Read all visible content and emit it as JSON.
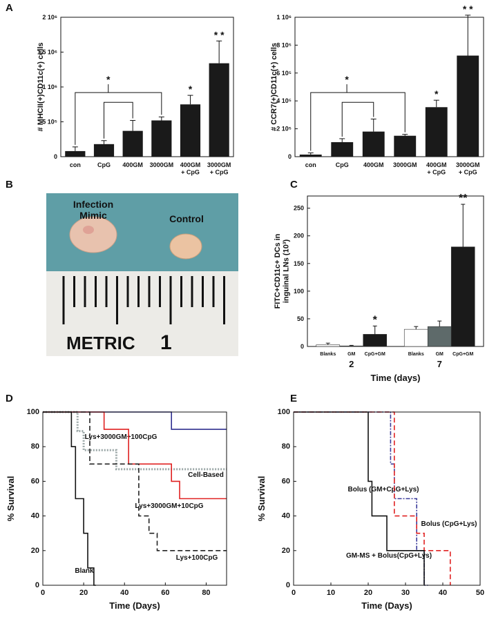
{
  "panels": [
    "A",
    "B",
    "C",
    "D",
    "E"
  ],
  "photo": {
    "labels": [
      "Infection\nMimic",
      "Control",
      "METRIC",
      "1"
    ]
  },
  "chart_data": [
    {
      "type": "bar",
      "ylabel": "# MHCII(+)CD11c(+) cells",
      "categories": [
        "con",
        "CpG",
        "400GM",
        "3000GM",
        "400GM\n+ CpG",
        "3000GM\n+ CpG"
      ],
      "values": [
        80000,
        180000,
        370000,
        520000,
        750000,
        1340000
      ],
      "errors": [
        60000,
        50000,
        150000,
        50000,
        130000,
        320000
      ],
      "color": "#1a1a1a",
      "ylim": [
        0,
        2000000
      ],
      "yticks": [
        0,
        {
          "value": 500000,
          "label": "5 10⁵"
        },
        {
          "value": 1000000,
          "label": "1 10⁶"
        },
        {
          "value": 1500000,
          "label": "1.5 10⁶"
        },
        {
          "value": 2000000,
          "label": "2 10⁶"
        }
      ],
      "annotations": [
        {
          "text": "*",
          "category": "400GM\n+ CpG"
        },
        {
          "text": "* *",
          "category": "3000GM\n+ CpG"
        }
      ],
      "bracket_label": "*"
    },
    {
      "type": "bar",
      "ylabel": "# CCR7(+)CD11c(+) cells",
      "categories": [
        "con",
        "CpG",
        "400GM",
        "3000GM",
        "400GM\n+ CpG",
        "3000GM\n+ CpG"
      ],
      "values": [
        15000,
        104000,
        180000,
        150000,
        355000,
        725000
      ],
      "errors": [
        12000,
        25000,
        90000,
        10000,
        50000,
        290000
      ],
      "color": "#1a1a1a",
      "ylim": [
        0,
        1000000
      ],
      "yticks": [
        0,
        {
          "value": 200000,
          "label": "2 10⁵"
        },
        {
          "value": 400000,
          "label": "4 10⁵"
        },
        {
          "value": 600000,
          "label": "6 10⁵"
        },
        {
          "value": 800000,
          "label": "8 10⁵"
        },
        {
          "value": 1000000,
          "label": "1 10⁶"
        }
      ],
      "annotations": [
        {
          "text": "*",
          "category": "400GM\n+ CpG"
        },
        {
          "text": "* *",
          "category": "3000GM\n+ CpG"
        }
      ],
      "bracket_label": "*"
    },
    {
      "type": "groupbar",
      "ylabel": "FITC+CD11c+ DCs in\ninguinal LNs (10³)",
      "xlabel": "Time (days)",
      "groups": [
        "2",
        "7"
      ],
      "series": [
        {
          "name": "Blanks",
          "color": "#ffffff",
          "values": [
            3,
            31
          ],
          "errors": [
            3,
            5
          ]
        },
        {
          "name": "GM",
          "color": "#5e6a6a",
          "values": [
            1,
            36
          ],
          "errors": [
            1,
            10
          ]
        },
        {
          "name": "CpG+GM",
          "color": "#1a1a1a",
          "values": [
            22,
            180
          ],
          "errors": [
            15,
            77
          ]
        }
      ],
      "ylim": [
        0,
        272
      ],
      "yticks": [
        0,
        50,
        100,
        150,
        200,
        250
      ],
      "annotations": [
        {
          "text": "*",
          "series": "CpG+GM",
          "group": "2"
        },
        {
          "text": "**",
          "series": "CpG+GM",
          "group": "7"
        }
      ]
    },
    {
      "type": "survival",
      "xlabel": "Time (Days)",
      "ylabel": "% Survival",
      "xlim": [
        0,
        90
      ],
      "xticks": [
        0,
        20,
        40,
        60,
        80
      ],
      "ylim": [
        0,
        100
      ],
      "yticks": [
        0,
        20,
        40,
        60,
        80,
        100
      ],
      "series": [
        {
          "name": "Lys+3000GM+100CpG",
          "color": "#2e2e8f",
          "dash": "solid",
          "x": [
            0,
            63,
            90
          ],
          "values": [
            100,
            90,
            90
          ]
        },
        {
          "name": "Cell-Based",
          "color": "#9aa6a6",
          "dash": "dotted",
          "x": [
            0,
            17,
            20,
            36,
            90
          ],
          "values": [
            100,
            89,
            78,
            67,
            67
          ]
        },
        {
          "name": "Lys+3000GM+10CpG",
          "color": "#e02020",
          "dash": "solid",
          "x": [
            0,
            30,
            42,
            63,
            67,
            90
          ],
          "values": [
            100,
            90,
            70,
            60,
            50,
            50
          ]
        },
        {
          "name": "Lys+100CpG",
          "color": "#222222",
          "dash": "dashed",
          "x": [
            0,
            23,
            47,
            52,
            56,
            90
          ],
          "values": [
            100,
            70,
            40,
            30,
            20,
            20
          ]
        },
        {
          "name": "Blank",
          "color": "#111111",
          "dash": "solid",
          "x": [
            0,
            14,
            16,
            20,
            22,
            25,
            26
          ],
          "values": [
            100,
            80,
            50,
            30,
            10,
            0,
            0
          ]
        }
      ]
    },
    {
      "type": "survival",
      "xlabel": "Time (Days)",
      "ylabel": "% Survival",
      "xlim": [
        0,
        50
      ],
      "xticks": [
        0,
        10,
        20,
        30,
        40,
        50
      ],
      "ylim": [
        0,
        100
      ],
      "yticks": [
        0,
        20,
        40,
        60,
        80,
        100
      ],
      "series": [
        {
          "name": "Bolus (GM+CpG+Lys)",
          "color": "#3a3a9a",
          "dash": "dashdot",
          "x": [
            0,
            26,
            27,
            33,
            35,
            36
          ],
          "values": [
            100,
            70,
            50,
            20,
            0,
            0
          ]
        },
        {
          "name": "Bolus (CpG+Lys)",
          "color": "#e02020",
          "dash": "dashed",
          "x": [
            0,
            27,
            33,
            35,
            42,
            42
          ],
          "values": [
            100,
            40,
            30,
            20,
            0,
            0
          ]
        },
        {
          "name": "GM-MS + Bolus(CpG+Lys)",
          "color": "#111111",
          "dash": "solid",
          "x": [
            0,
            20,
            21,
            25,
            35,
            35
          ],
          "values": [
            100,
            60,
            40,
            20,
            0,
            0
          ]
        }
      ]
    }
  ]
}
